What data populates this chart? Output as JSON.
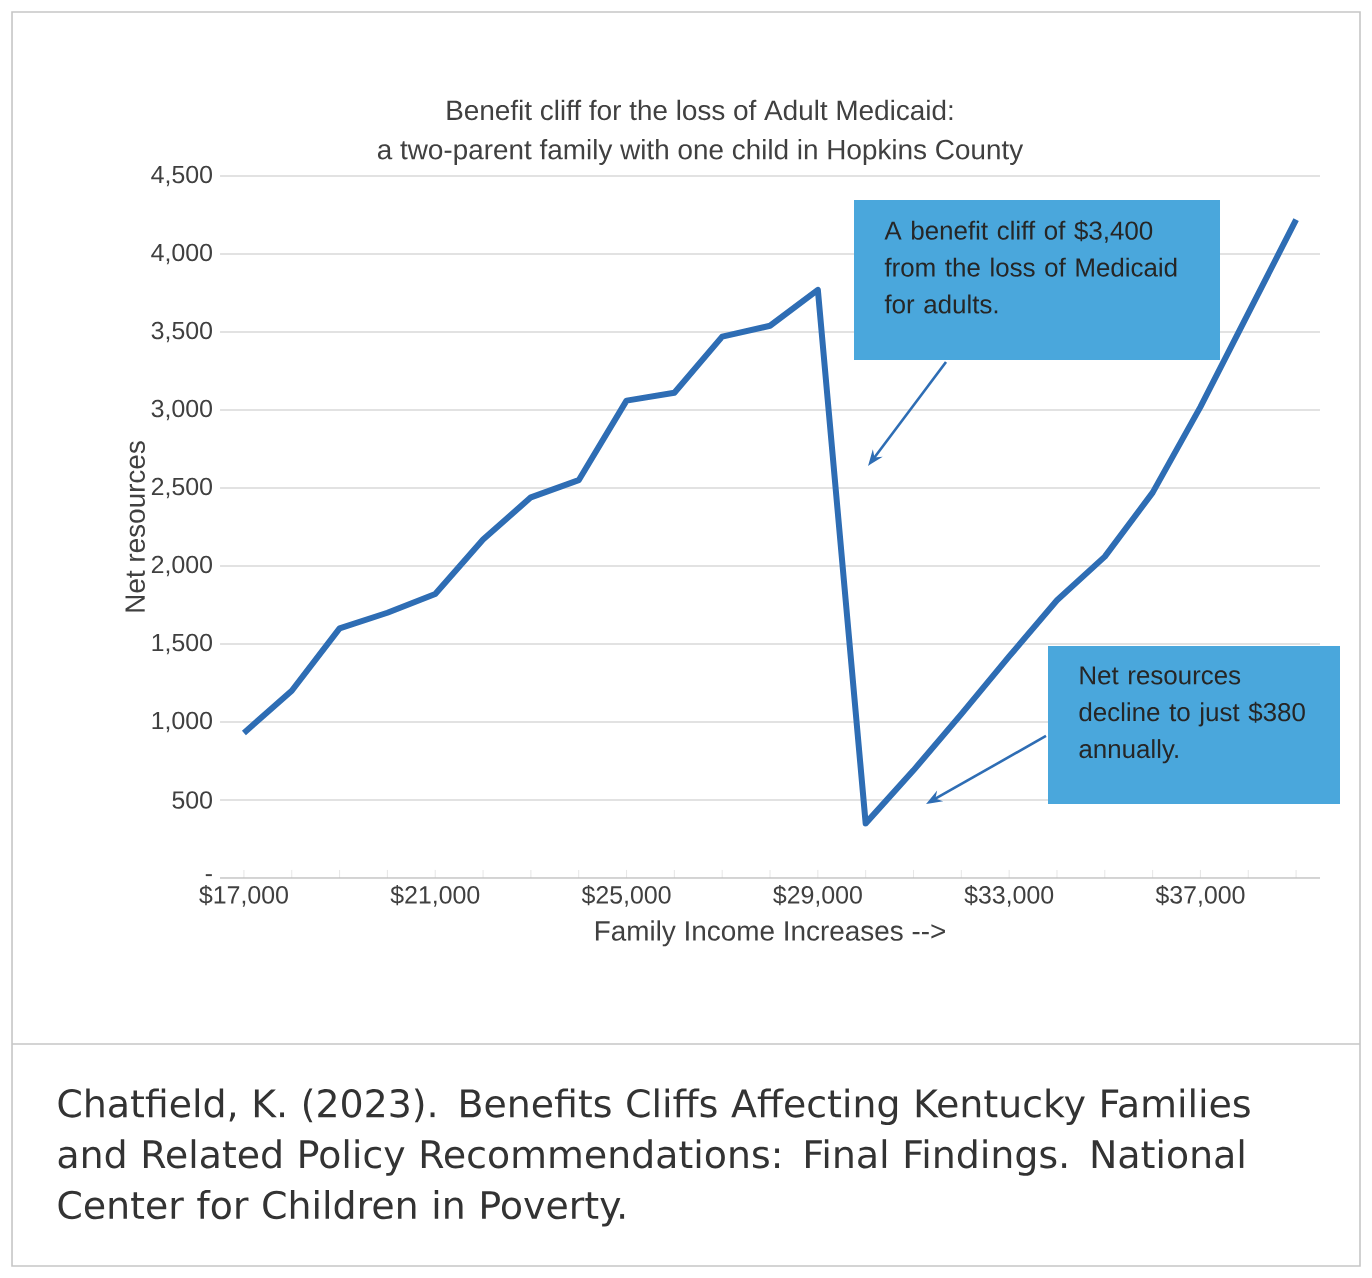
{
  "chart_data": {
    "type": "line",
    "title": "Benefit cliff for the loss of Adult Medicaid:",
    "subtitle": "a two-parent family with one child in Hopkins County",
    "xlabel": "Family Income Increases -->",
    "ylabel": "Net resources",
    "categories": [
      "$17,000",
      null,
      null,
      null,
      "$21,000",
      null,
      null,
      null,
      "$25,000",
      null,
      null,
      null,
      "$29,000",
      null,
      null,
      null,
      "$33,000",
      null,
      null,
      null,
      "$37,000",
      null,
      null
    ],
    "values": [
      930,
      1200,
      1600,
      1700,
      1820,
      2170,
      2440,
      2550,
      3060,
      3110,
      3470,
      3540,
      3770,
      350,
      690,
      1050,
      1420,
      1780,
      2060,
      2470,
      3020,
      3620,
      4220
    ],
    "color": "#2e6db4",
    "ylim": [
      0,
      4500
    ],
    "yticks": [
      {
        "value": 0,
        "label": "-"
      },
      {
        "value": 500,
        "label": "500"
      },
      {
        "value": 1000,
        "label": "1,000"
      },
      {
        "value": 1500,
        "label": "1,500"
      },
      {
        "value": 2000,
        "label": "2,000"
      },
      {
        "value": 2500,
        "label": "2,500"
      },
      {
        "value": 3000,
        "label": "3,000"
      },
      {
        "value": 3500,
        "label": "3,500"
      },
      {
        "value": 4000,
        "label": "4,000"
      },
      {
        "value": 4500,
        "label": "4,500"
      }
    ],
    "grid": "y",
    "annotations": [
      "A benefit cliff of $3,400 from the loss of Medicaid for adults.",
      "Net resources decline to just $380 annually.",
      "Chatfield, K. (2023). Benefits Cliffs Affecting Kentucky Families and Related Policy Recommendations: Final Findings. National Center for Children in Poverty."
    ]
  }
}
